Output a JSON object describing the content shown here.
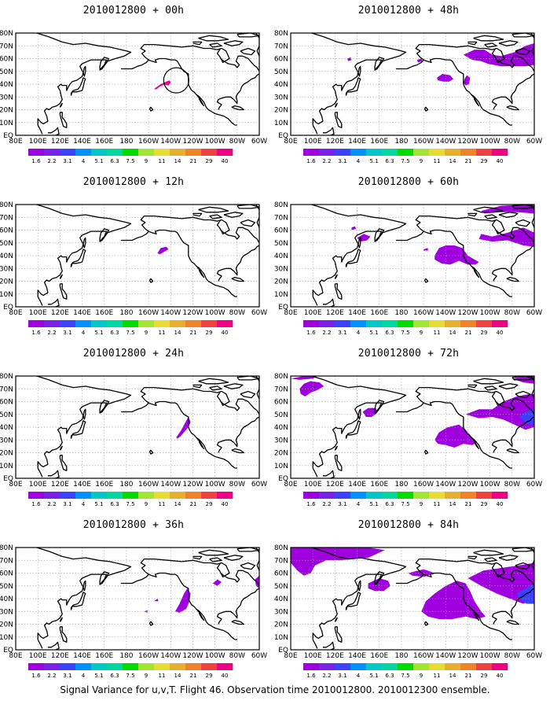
{
  "caption": "Signal Variance for u,v,T. Flight 46. Observation time 2010012800. 2010012300 ensemble.",
  "lon_labels": [
    "80E",
    "100E",
    "120E",
    "140E",
    "160E",
    "180",
    "160W",
    "140W",
    "120W",
    "100W",
    "80W",
    "60W"
  ],
  "lat_labels": [
    "80N",
    "70N",
    "60N",
    "50N",
    "40N",
    "30N",
    "20N",
    "10N",
    "EQ"
  ],
  "colorbar": {
    "labels": [
      "1.6",
      "2.2",
      "3.1",
      "4",
      "5.1",
      "6.3",
      "7.5",
      "9",
      "11",
      "14",
      "21",
      "29",
      "40"
    ],
    "colors": [
      "#a000e0",
      "#7a20e8",
      "#3c40ff",
      "#0090ff",
      "#00c8c8",
      "#00d8a0",
      "#00dc00",
      "#a0e632",
      "#e6dc32",
      "#e6af2d",
      "#f08228",
      "#f04040",
      "#f00082"
    ]
  },
  "panels": [
    {
      "title": "2010012800 + 00h"
    },
    {
      "title": "2010012800 + 48h"
    },
    {
      "title": "2010012800 + 12h"
    },
    {
      "title": "2010012800 + 60h"
    },
    {
      "title": "2010012800 + 24h"
    },
    {
      "title": "2010012800 + 72h"
    },
    {
      "title": "2010012800 + 36h"
    },
    {
      "title": "2010012800 + 84h"
    }
  ]
}
